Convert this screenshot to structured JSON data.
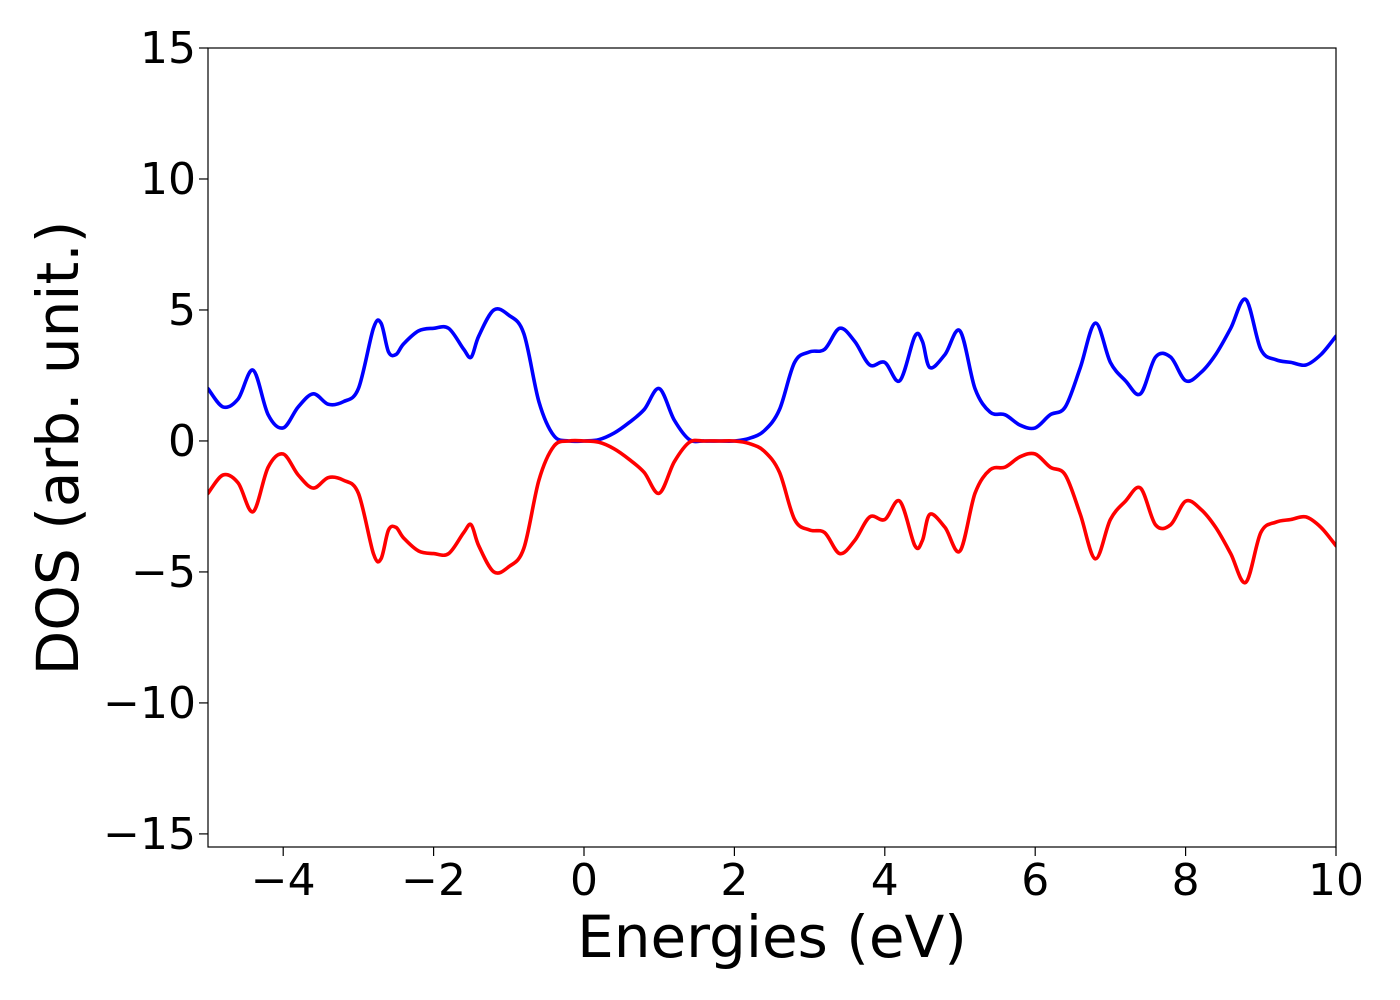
{
  "chart_data": {
    "type": "line",
    "title": "",
    "xlabel": "Energies (eV)",
    "ylabel": "DOS (arb. unit.)",
    "xlim": [
      -5,
      10
    ],
    "ylim": [
      -15.5,
      15
    ],
    "x_ticks": [
      -4,
      -2,
      0,
      2,
      4,
      6,
      8,
      10
    ],
    "x_tick_labels": [
      "−4",
      "−2",
      "0",
      "2",
      "4",
      "6",
      "8",
      "10"
    ],
    "y_ticks": [
      -15,
      -10,
      -5,
      0,
      5,
      10,
      15
    ],
    "y_tick_labels": [
      "−15",
      "−10",
      "−5",
      "0",
      "5",
      "10",
      "15"
    ],
    "grid": false,
    "legend": null,
    "series": [
      {
        "color": "#0000ff",
        "x": [
          -5.0,
          -4.8,
          -4.6,
          -4.4,
          -4.2,
          -4.0,
          -3.8,
          -3.6,
          -3.4,
          -3.2,
          -3.0,
          -2.8,
          -2.7,
          -2.6,
          -2.5,
          -2.4,
          -2.2,
          -2.0,
          -1.8,
          -1.6,
          -1.5,
          -1.4,
          -1.2,
          -1.0,
          -0.8,
          -0.6,
          -0.4,
          -0.2,
          0.0,
          0.2,
          0.4,
          0.6,
          0.8,
          1.0,
          1.2,
          1.4,
          1.6,
          1.8,
          2.0,
          2.2,
          2.4,
          2.6,
          2.8,
          3.0,
          3.2,
          3.4,
          3.6,
          3.8,
          4.0,
          4.2,
          4.4,
          4.5,
          4.6,
          4.8,
          5.0,
          5.2,
          5.4,
          5.6,
          5.8,
          6.0,
          6.2,
          6.4,
          6.6,
          6.8,
          7.0,
          7.2,
          7.4,
          7.6,
          7.8,
          8.0,
          8.2,
          8.4,
          8.6,
          8.8,
          9.0,
          9.2,
          9.4,
          9.6,
          9.8,
          10.0
        ],
        "y": [
          2.0,
          1.3,
          1.6,
          2.7,
          1.0,
          0.5,
          1.3,
          1.8,
          1.4,
          1.5,
          2.0,
          4.3,
          4.5,
          3.4,
          3.3,
          3.7,
          4.2,
          4.3,
          4.3,
          3.5,
          3.2,
          4.0,
          5.0,
          4.8,
          4.1,
          1.5,
          0.2,
          0.0,
          0.0,
          0.05,
          0.3,
          0.7,
          1.2,
          2.0,
          0.8,
          0.05,
          0.0,
          0.0,
          0.0,
          0.1,
          0.4,
          1.2,
          3.0,
          3.4,
          3.5,
          4.3,
          3.8,
          2.9,
          3.0,
          2.3,
          4.0,
          3.8,
          2.8,
          3.3,
          4.2,
          2.0,
          1.1,
          1.0,
          0.6,
          0.5,
          1.0,
          1.3,
          2.8,
          4.5,
          3.0,
          2.3,
          1.8,
          3.2,
          3.2,
          2.3,
          2.6,
          3.3,
          4.3,
          5.4,
          3.5,
          3.1,
          3.0,
          2.9,
          3.3,
          4.0
        ]
      },
      {
        "color": "#ff0000",
        "x": [
          -5.0,
          -4.8,
          -4.6,
          -4.4,
          -4.2,
          -4.0,
          -3.8,
          -3.6,
          -3.4,
          -3.2,
          -3.0,
          -2.8,
          -2.7,
          -2.6,
          -2.5,
          -2.4,
          -2.2,
          -2.0,
          -1.8,
          -1.6,
          -1.5,
          -1.4,
          -1.2,
          -1.0,
          -0.8,
          -0.6,
          -0.4,
          -0.2,
          0.0,
          0.2,
          0.4,
          0.6,
          0.8,
          1.0,
          1.2,
          1.4,
          1.6,
          1.8,
          2.0,
          2.2,
          2.4,
          2.6,
          2.8,
          3.0,
          3.2,
          3.4,
          3.6,
          3.8,
          4.0,
          4.2,
          4.4,
          4.5,
          4.6,
          4.8,
          5.0,
          5.2,
          5.4,
          5.6,
          5.8,
          6.0,
          6.2,
          6.4,
          6.6,
          6.8,
          7.0,
          7.2,
          7.4,
          7.6,
          7.8,
          8.0,
          8.2,
          8.4,
          8.6,
          8.8,
          9.0,
          9.2,
          9.4,
          9.6,
          9.8,
          10.0
        ],
        "y": [
          -2.0,
          -1.3,
          -1.6,
          -2.7,
          -1.0,
          -0.5,
          -1.3,
          -1.8,
          -1.4,
          -1.5,
          -2.0,
          -4.3,
          -4.5,
          -3.4,
          -3.3,
          -3.7,
          -4.2,
          -4.3,
          -4.3,
          -3.5,
          -3.2,
          -4.0,
          -5.0,
          -4.8,
          -4.1,
          -1.5,
          -0.2,
          0.0,
          0.0,
          -0.05,
          -0.3,
          -0.7,
          -1.2,
          -2.0,
          -0.8,
          -0.05,
          0.0,
          0.0,
          0.0,
          -0.1,
          -0.4,
          -1.2,
          -3.0,
          -3.4,
          -3.5,
          -4.3,
          -3.8,
          -2.9,
          -3.0,
          -2.3,
          -4.0,
          -3.8,
          -2.8,
          -3.3,
          -4.2,
          -2.0,
          -1.1,
          -1.0,
          -0.6,
          -0.5,
          -1.0,
          -1.3,
          -2.8,
          -4.5,
          -3.0,
          -2.3,
          -1.8,
          -3.2,
          -3.2,
          -2.3,
          -2.6,
          -3.3,
          -4.3,
          -5.4,
          -3.5,
          -3.1,
          -3.0,
          -2.9,
          -3.3,
          -4.0
        ]
      }
    ]
  }
}
